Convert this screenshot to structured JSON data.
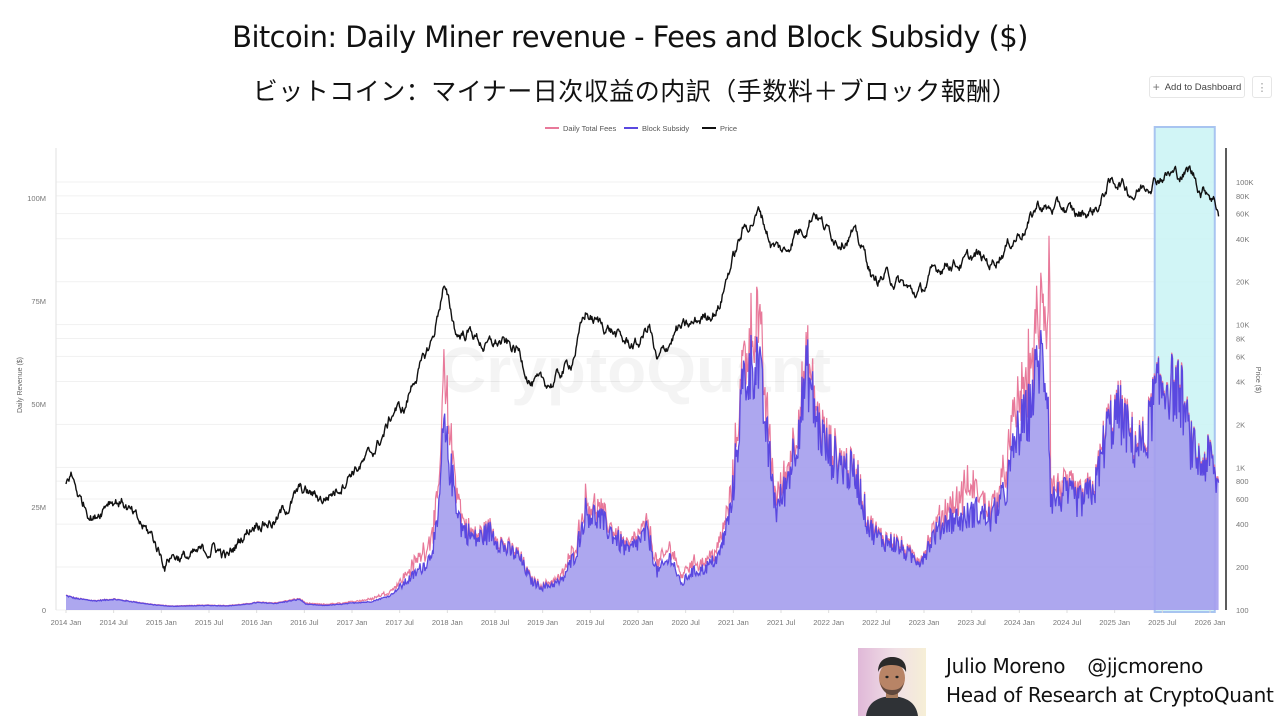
{
  "header": {
    "title_en": "Bitcoin: Daily Miner revenue - Fees and Block Subsidy ($)",
    "title_ja": "ビットコイン：マイナー日次収益の内訳（手数料＋ブロック報酬）"
  },
  "toolbar": {
    "add_to_dashboard_label": "Add to Dashboard",
    "add_icon": "plus-icon",
    "more_icon": "vertical-ellipsis-icon"
  },
  "author": {
    "name": "Julio Moreno",
    "handle": "@jjcmoreno",
    "role": "Head of Research at CryptoQuant"
  },
  "chart_data": {
    "type": "area",
    "title": "Bitcoin: Daily Miner revenue - Fees and Block Subsidy ($)",
    "watermark": "CryptoQuant",
    "legend": {
      "placement": "top-center",
      "entries": [
        {
          "name": "Daily Total Fees",
          "color": "#e8799a"
        },
        {
          "name": "Block Subsidy",
          "color": "#5a48e0"
        },
        {
          "name": "Price",
          "color": "#111111"
        }
      ]
    },
    "colors": {
      "fees": "#e8799a",
      "subsidy_line": "#5a48e0",
      "subsidy_fill": "#a49ded",
      "price": "#111111",
      "highlight": "#c9f3f5",
      "highlight_border": "#a8c4f0"
    },
    "x_axis": {
      "label": "",
      "ticks": [
        "2014 Jan",
        "2014 Jul",
        "2015 Jan",
        "2015 Jul",
        "2016 Jan",
        "2016 Jul",
        "2017 Jan",
        "2017 Jul",
        "2018 Jan",
        "2018 Jul",
        "2019 Jan",
        "2019 Jul",
        "2020 Jan",
        "2020 Jul",
        "2021 Jan",
        "2021 Jul",
        "2022 Jan",
        "2022 Jul",
        "2023 Jan",
        "2023 Jul",
        "2024 Jan",
        "2024 Jul",
        "2025 Jan",
        "2025 Jul",
        "2026 Jan"
      ],
      "range": [
        2013.97,
        2026.15
      ]
    },
    "y_left": {
      "label": "Daily Revenue ($)",
      "ticks": [
        "0",
        "25M",
        "50M",
        "75M",
        "100M"
      ],
      "tick_values": [
        0,
        25,
        50,
        75,
        100
      ],
      "unit": "M USD",
      "range": [
        0,
        112
      ]
    },
    "y_right": {
      "label": "Price ($)",
      "scale": "log",
      "ticks": [
        "100",
        "200",
        "400",
        "600",
        "800",
        "1K",
        "2K",
        "4K",
        "6K",
        "8K",
        "10K",
        "20K",
        "40K",
        "60K",
        "80K",
        "100K"
      ],
      "tick_values": [
        100,
        200,
        400,
        600,
        800,
        1000,
        2000,
        4000,
        6000,
        8000,
        10000,
        20000,
        40000,
        60000,
        80000,
        100000
      ],
      "range": [
        100,
        180000
      ]
    },
    "highlight_range": {
      "from": "2025 Jul",
      "to": "2026 Feb",
      "x": [
        2025.42,
        2026.05
      ]
    },
    "series": [
      {
        "name": "Price",
        "axis": "right",
        "points": [
          [
            2014.0,
            750
          ],
          [
            2014.05,
            900
          ],
          [
            2014.15,
            600
          ],
          [
            2014.3,
            450
          ],
          [
            2014.45,
            620
          ],
          [
            2014.6,
            580
          ],
          [
            2014.75,
            400
          ],
          [
            2014.9,
            330
          ],
          [
            2015.04,
            210
          ],
          [
            2015.1,
            250
          ],
          [
            2015.3,
            230
          ],
          [
            2015.45,
            250
          ],
          [
            2015.55,
            280
          ],
          [
            2015.7,
            230
          ],
          [
            2015.85,
            330
          ],
          [
            2016.0,
            430
          ],
          [
            2016.2,
            420
          ],
          [
            2016.45,
            680
          ],
          [
            2016.55,
            650
          ],
          [
            2016.7,
            600
          ],
          [
            2016.85,
            720
          ],
          [
            2017.0,
            980
          ],
          [
            2017.1,
            1050
          ],
          [
            2017.2,
            1200
          ],
          [
            2017.35,
            1800
          ],
          [
            2017.45,
            2600
          ],
          [
            2017.55,
            2500
          ],
          [
            2017.65,
            4200
          ],
          [
            2017.75,
            5500
          ],
          [
            2017.85,
            8000
          ],
          [
            2017.96,
            19000
          ],
          [
            2018.05,
            11000
          ],
          [
            2018.1,
            8500
          ],
          [
            2018.25,
            9000
          ],
          [
            2018.4,
            7000
          ],
          [
            2018.55,
            7500
          ],
          [
            2018.75,
            6400
          ],
          [
            2018.88,
            4000
          ],
          [
            2018.97,
            3700
          ],
          [
            2019.1,
            3900
          ],
          [
            2019.3,
            5500
          ],
          [
            2019.45,
            12000
          ],
          [
            2019.55,
            10500
          ],
          [
            2019.7,
            9500
          ],
          [
            2019.85,
            7500
          ],
          [
            2020.0,
            7200
          ],
          [
            2020.12,
            10000
          ],
          [
            2020.2,
            5200
          ],
          [
            2020.4,
            9200
          ],
          [
            2020.55,
            9500
          ],
          [
            2020.7,
            11500
          ],
          [
            2020.85,
            13500
          ],
          [
            2020.95,
            24000
          ],
          [
            2021.1,
            45000
          ],
          [
            2021.28,
            63000
          ],
          [
            2021.4,
            37000
          ],
          [
            2021.55,
            32000
          ],
          [
            2021.65,
            45000
          ],
          [
            2021.75,
            48000
          ],
          [
            2021.85,
            66000
          ],
          [
            2021.97,
            47000
          ],
          [
            2022.1,
            40000
          ],
          [
            2022.25,
            45000
          ],
          [
            2022.4,
            29000
          ],
          [
            2022.47,
            20000
          ],
          [
            2022.6,
            22000
          ],
          [
            2022.75,
            19500
          ],
          [
            2022.88,
            16500
          ],
          [
            2022.97,
            16800
          ],
          [
            2023.1,
            23000
          ],
          [
            2023.25,
            28000
          ],
          [
            2023.4,
            27000
          ],
          [
            2023.55,
            30000
          ],
          [
            2023.7,
            26500
          ],
          [
            2023.85,
            35000
          ],
          [
            2023.97,
            42000
          ],
          [
            2024.1,
            52000
          ],
          [
            2024.2,
            70000
          ],
          [
            2024.3,
            64000
          ],
          [
            2024.45,
            66000
          ],
          [
            2024.6,
            58000
          ],
          [
            2024.75,
            62000
          ],
          [
            2024.85,
            70000
          ],
          [
            2024.92,
            95000
          ],
          [
            2025.05,
            102000
          ],
          [
            2025.2,
            83000
          ],
          [
            2025.3,
            94000
          ],
          [
            2025.42,
            108000
          ],
          [
            2025.55,
            115000
          ],
          [
            2025.7,
            112000
          ],
          [
            2025.78,
            120000
          ],
          [
            2025.85,
            105000
          ],
          [
            2025.9,
            88000
          ],
          [
            2025.97,
            90000
          ],
          [
            2026.05,
            76000
          ],
          [
            2026.09,
            64000
          ]
        ]
      },
      {
        "name": "Block Subsidy",
        "axis": "left",
        "unit": "M USD",
        "points": [
          [
            2014.0,
            3.5
          ],
          [
            2014.1,
            2.8
          ],
          [
            2014.3,
            2.2
          ],
          [
            2014.5,
            2.6
          ],
          [
            2014.7,
            2.0
          ],
          [
            2014.9,
            1.3
          ],
          [
            2015.1,
            0.9
          ],
          [
            2015.3,
            1.0
          ],
          [
            2015.5,
            1.1
          ],
          [
            2015.7,
            1.0
          ],
          [
            2015.9,
            1.4
          ],
          [
            2016.0,
            1.8
          ],
          [
            2016.2,
            1.6
          ],
          [
            2016.45,
            2.6
          ],
          [
            2016.52,
            1.4
          ],
          [
            2016.7,
            1.1
          ],
          [
            2016.9,
            1.4
          ],
          [
            2017.0,
            1.7
          ],
          [
            2017.2,
            2.0
          ],
          [
            2017.4,
            3.5
          ],
          [
            2017.55,
            6.5
          ],
          [
            2017.65,
            8.5
          ],
          [
            2017.8,
            12
          ],
          [
            2017.9,
            20
          ],
          [
            2017.96,
            44
          ],
          [
            2018.05,
            32
          ],
          [
            2018.15,
            20
          ],
          [
            2018.3,
            17
          ],
          [
            2018.45,
            19
          ],
          [
            2018.6,
            15
          ],
          [
            2018.75,
            13
          ],
          [
            2018.88,
            7
          ],
          [
            2019.0,
            5.5
          ],
          [
            2019.2,
            7
          ],
          [
            2019.35,
            14
          ],
          [
            2019.45,
            24
          ],
          [
            2019.6,
            22
          ],
          [
            2019.75,
            18
          ],
          [
            2019.9,
            14
          ],
          [
            2020.1,
            19
          ],
          [
            2020.2,
            9
          ],
          [
            2020.35,
            13
          ],
          [
            2020.45,
            6
          ],
          [
            2020.55,
            9
          ],
          [
            2020.7,
            10
          ],
          [
            2020.85,
            13
          ],
          [
            2020.98,
            25
          ],
          [
            2021.1,
            55
          ],
          [
            2021.25,
            62
          ],
          [
            2021.35,
            42
          ],
          [
            2021.45,
            24
          ],
          [
            2021.55,
            30
          ],
          [
            2021.65,
            40
          ],
          [
            2021.78,
            58
          ],
          [
            2021.88,
            45
          ],
          [
            2022.0,
            38
          ],
          [
            2022.15,
            35
          ],
          [
            2022.3,
            32
          ],
          [
            2022.42,
            20
          ],
          [
            2022.55,
            17
          ],
          [
            2022.7,
            16
          ],
          [
            2022.85,
            13
          ],
          [
            2022.97,
            12
          ],
          [
            2023.1,
            18
          ],
          [
            2023.25,
            22
          ],
          [
            2023.4,
            22
          ],
          [
            2023.55,
            24
          ],
          [
            2023.7,
            22
          ],
          [
            2023.85,
            28
          ],
          [
            2023.97,
            42
          ],
          [
            2024.1,
            48
          ],
          [
            2024.22,
            62
          ],
          [
            2024.3,
            54
          ],
          [
            2024.33,
            27
          ],
          [
            2024.5,
            28
          ],
          [
            2024.65,
            26
          ],
          [
            2024.8,
            30
          ],
          [
            2024.92,
            44
          ],
          [
            2025.05,
            48
          ],
          [
            2025.2,
            40
          ],
          [
            2025.32,
            40
          ],
          [
            2025.42,
            52
          ],
          [
            2025.55,
            55
          ],
          [
            2025.7,
            52
          ],
          [
            2025.8,
            40
          ],
          [
            2025.9,
            35
          ],
          [
            2026.0,
            37
          ],
          [
            2026.08,
            30
          ]
        ]
      },
      {
        "name": "Daily Total Fees",
        "axis": "left",
        "unit": "M USD",
        "stacked_on": "Block Subsidy",
        "points": [
          [
            2014.0,
            0.05
          ],
          [
            2016.0,
            0.1
          ],
          [
            2017.0,
            0.3
          ],
          [
            2017.5,
            1.2
          ],
          [
            2017.9,
            5
          ],
          [
            2017.96,
            12
          ],
          [
            2018.05,
            6
          ],
          [
            2018.2,
            1
          ],
          [
            2019.0,
            0.4
          ],
          [
            2019.45,
            2.5
          ],
          [
            2019.8,
            1
          ],
          [
            2020.4,
            2.5
          ],
          [
            2020.7,
            1.8
          ],
          [
            2021.0,
            3
          ],
          [
            2021.28,
            10
          ],
          [
            2021.4,
            3
          ],
          [
            2021.8,
            2.5
          ],
          [
            2022.2,
            1
          ],
          [
            2023.0,
            0.6
          ],
          [
            2023.35,
            4
          ],
          [
            2023.45,
            7
          ],
          [
            2023.7,
            2
          ],
          [
            2023.9,
            6
          ],
          [
            2024.0,
            8
          ],
          [
            2024.2,
            10
          ],
          [
            2024.3,
            14
          ],
          [
            2024.31,
            52
          ],
          [
            2024.33,
            3
          ],
          [
            2024.5,
            2
          ],
          [
            2024.8,
            1
          ],
          [
            2025.0,
            1
          ],
          [
            2025.5,
            0.6
          ],
          [
            2026.08,
            0.4
          ]
        ]
      }
    ]
  }
}
